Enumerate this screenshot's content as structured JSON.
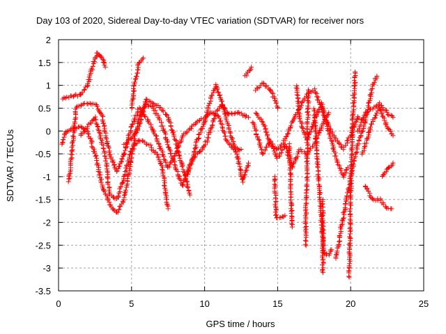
{
  "chart_data": {
    "type": "scatter",
    "title": "Day 103 of 2020, Sidereal Day-to-day VTEC variation (SDTVAR) for receiver nors",
    "xlabel": "GPS time / hours",
    "ylabel": "SDTVAR / TECUs",
    "xlim": [
      0,
      25
    ],
    "ylim": [
      -3.5,
      2
    ],
    "xticks": [
      "0",
      "5",
      "10",
      "15",
      "20",
      "25"
    ],
    "yticks": [
      "2",
      "1.5",
      "1",
      "0.5",
      "0",
      "-0.5",
      "-1",
      "-1.5",
      "-2",
      "-2.5",
      "-3",
      "-3.5"
    ],
    "grid": true,
    "marker": "+",
    "color": "#ff0000",
    "tracks": [
      [
        [
          0.3,
          0.7
        ],
        [
          0.8,
          0.75
        ],
        [
          1.5,
          0.8
        ],
        [
          2,
          1.0
        ],
        [
          2.4,
          1.5
        ],
        [
          2.7,
          1.72
        ],
        [
          3.0,
          1.6
        ],
        [
          3.2,
          1.4
        ]
      ],
      [
        [
          0.2,
          -0.3
        ],
        [
          0.5,
          0.0
        ],
        [
          1.0,
          0.05
        ],
        [
          1.5,
          0.1
        ],
        [
          2.0,
          0.0
        ],
        [
          2.5,
          -0.5
        ],
        [
          3.0,
          -1.2
        ],
        [
          3.5,
          -1.6
        ],
        [
          4.0,
          -1.8
        ],
        [
          4.5,
          -1.5
        ],
        [
          5.0,
          -0.6
        ],
        [
          5.5,
          0.3
        ],
        [
          6.0,
          0.6
        ],
        [
          6.5,
          0.5
        ],
        [
          7.0,
          0.2
        ],
        [
          7.5,
          -0.3
        ],
        [
          8.0,
          -0.8
        ],
        [
          8.5,
          -1.2
        ],
        [
          9.0,
          -0.8
        ],
        [
          9.5,
          -0.2
        ],
        [
          10,
          0.2
        ],
        [
          10.5,
          0.8
        ],
        [
          10.8,
          1.0
        ],
        [
          11.2,
          0.6
        ],
        [
          11.8,
          -0.1
        ],
        [
          12.2,
          -0.5
        ],
        [
          12.6,
          -1.1
        ],
        [
          13,
          -0.7
        ]
      ],
      [
        [
          0.7,
          -1.1
        ],
        [
          1.0,
          -0.2
        ],
        [
          1.2,
          0.5
        ],
        [
          1.8,
          0.6
        ],
        [
          2.5,
          0.6
        ],
        [
          3.0,
          0.3
        ],
        [
          3.5,
          -0.5
        ],
        [
          4.0,
          -0.9
        ],
        [
          4.5,
          -0.5
        ],
        [
          5,
          0.1
        ],
        [
          5.5,
          0.5
        ],
        [
          6,
          0.3
        ],
        [
          6.5,
          0
        ],
        [
          7,
          -0.4
        ],
        [
          7.5,
          -0.8
        ],
        [
          8,
          -0.5
        ],
        [
          8.5,
          -0.1
        ],
        [
          9.5,
          0.2
        ],
        [
          10.5,
          0.4
        ],
        [
          11,
          0.3
        ],
        [
          11.5,
          -0.2
        ],
        [
          12,
          -0.4
        ],
        [
          12.5,
          -0.4
        ]
      ],
      [
        [
          1.5,
          -0.1
        ],
        [
          2.5,
          0.3
        ],
        [
          3.2,
          -0.5
        ],
        [
          3.5,
          -1.4
        ],
        [
          4,
          -1.5
        ],
        [
          4.5,
          -1.0
        ],
        [
          5,
          -0.4
        ],
        [
          5.5,
          -0.2
        ],
        [
          6.2,
          -0.3
        ],
        [
          6.7,
          -0.5
        ],
        [
          7.1,
          -0.8
        ],
        [
          7.5,
          -1.7
        ]
      ],
      [
        [
          4.5,
          -0.3
        ],
        [
          5.0,
          -0.15
        ],
        [
          5.5,
          0.1
        ],
        [
          6,
          0.7
        ],
        [
          6.5,
          0.6
        ],
        [
          7,
          0.5
        ],
        [
          7.5,
          0.3
        ],
        [
          8,
          -0.2
        ],
        [
          8.5,
          -0.8
        ],
        [
          9,
          -1.4
        ]
      ],
      [
        [
          5.0,
          0.5
        ],
        [
          5.2,
          1.0
        ],
        [
          5.5,
          1.5
        ],
        [
          5.8,
          1.6
        ]
      ],
      [
        [
          8.7,
          -1.0
        ],
        [
          9.2,
          -0.6
        ],
        [
          9.8,
          -0.4
        ],
        [
          10.2,
          -0.2
        ],
        [
          10.8,
          0.4
        ],
        [
          11.2,
          0.6
        ],
        [
          11.6,
          0.35
        ],
        [
          12.2,
          0.4
        ],
        [
          13,
          0.3
        ]
      ],
      [
        [
          12.8,
          1.2
        ],
        [
          13.2,
          1.4
        ]
      ],
      [
        [
          13.5,
          0.9
        ],
        [
          14,
          1.05
        ],
        [
          14.5,
          0.9
        ],
        [
          14.8,
          0.7
        ],
        [
          15,
          0.5
        ]
      ],
      [
        [
          13.5,
          0.4
        ],
        [
          14,
          0.2
        ],
        [
          14.5,
          -0.3
        ],
        [
          15,
          -0.4
        ],
        [
          15.5,
          -0.2
        ],
        [
          16,
          0.2
        ],
        [
          16.5,
          0.5
        ],
        [
          17,
          0.8
        ],
        [
          17.5,
          0.9
        ],
        [
          18,
          0.5
        ],
        [
          18.5,
          0.1
        ],
        [
          19,
          -0.2
        ],
        [
          19.5,
          -0.4
        ],
        [
          20,
          -0.1
        ],
        [
          20.5,
          0.3
        ],
        [
          21,
          0.2
        ]
      ],
      [
        [
          14.8,
          -1.0
        ],
        [
          14.9,
          -1.9
        ],
        [
          15.5,
          -1.85
        ]
      ],
      [
        [
          15.8,
          -0.3
        ],
        [
          16,
          -2.1
        ]
      ],
      [
        [
          17.5,
          0.5
        ],
        [
          17.8,
          -1.0
        ],
        [
          18,
          -2.0
        ],
        [
          18.2,
          -2.7
        ],
        [
          18.5,
          -2.7
        ],
        [
          18.7,
          -2.6
        ]
      ],
      [
        [
          20.3,
          1.3
        ],
        [
          20.1,
          0
        ],
        [
          20,
          -1.5
        ],
        [
          19.9,
          -3.2
        ]
      ],
      [
        [
          19,
          -2.8
        ],
        [
          19.3,
          -2.2
        ],
        [
          19.6,
          -1.7
        ],
        [
          20,
          -1.0
        ],
        [
          20.5,
          -0.3
        ],
        [
          21,
          0.2
        ],
        [
          21.5,
          1.0
        ],
        [
          21.8,
          1.2
        ]
      ],
      [
        [
          21,
          -1.2
        ],
        [
          21.5,
          -1.5
        ],
        [
          22,
          -1.5
        ],
        [
          22.5,
          -1.7
        ],
        [
          22.8,
          -1.7
        ]
      ],
      [
        [
          22.2,
          -1.0
        ],
        [
          22.6,
          -0.8
        ],
        [
          22.9,
          -0.7
        ]
      ],
      [
        [
          16.3,
          1.0
        ],
        [
          16.5,
          0.3
        ],
        [
          17,
          -0.2
        ],
        [
          17.5,
          0.2
        ],
        [
          18,
          0.6
        ],
        [
          18.5,
          0.0
        ],
        [
          19,
          -0.6
        ],
        [
          19.5,
          -1.0
        ],
        [
          19.8,
          -0.8
        ]
      ],
      [
        [
          20.5,
          0.0
        ],
        [
          21,
          0.4
        ],
        [
          21.5,
          0.5
        ],
        [
          22,
          0.6
        ],
        [
          22.5,
          0.4
        ],
        [
          22.9,
          0.3
        ]
      ],
      [
        [
          20.8,
          -0.5
        ],
        [
          21.5,
          0.2
        ],
        [
          22,
          0.5
        ],
        [
          22.5,
          0.1
        ],
        [
          22.9,
          -0.1
        ]
      ],
      [
        [
          13.3,
          0.2
        ],
        [
          14,
          -0.5
        ],
        [
          14.5,
          -0.2
        ],
        [
          15,
          -0.6
        ],
        [
          15.5,
          -0.3
        ],
        [
          16,
          -0.8
        ],
        [
          16.5,
          -0.4
        ],
        [
          17,
          -0.5
        ],
        [
          17.5,
          -0.3
        ],
        [
          18,
          0.1
        ],
        [
          18.5,
          0.4
        ]
      ],
      [
        [
          16.9,
          -2.5
        ],
        [
          17.0,
          -1.0
        ],
        [
          17.1,
          0.9
        ]
      ],
      [
        [
          18.1,
          -3.1
        ],
        [
          18.1,
          -1.5
        ]
      ]
    ]
  }
}
